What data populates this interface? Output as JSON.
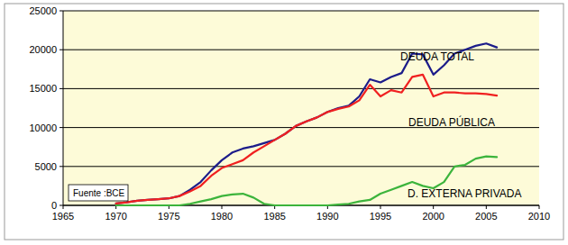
{
  "chart_data": {
    "type": "line",
    "source": "Fuente :BCE",
    "x": [
      1970,
      1971,
      1972,
      1973,
      1974,
      1975,
      1976,
      1977,
      1978,
      1979,
      1980,
      1981,
      1982,
      1983,
      1984,
      1985,
      1986,
      1987,
      1988,
      1989,
      1990,
      1991,
      1992,
      1993,
      1994,
      1995,
      1996,
      1997,
      1998,
      1999,
      2000,
      2001,
      2002,
      2003,
      2004,
      2005,
      2006
    ],
    "series": [
      {
        "name": "DEUDA TOTAL",
        "color": "#1c1c8a",
        "values": [
          250,
          400,
          600,
          700,
          800,
          900,
          1200,
          2000,
          3000,
          4500,
          5800,
          6800,
          7300,
          7600,
          8000,
          8400,
          9200,
          10200,
          10800,
          11300,
          12000,
          12500,
          12800,
          14000,
          16200,
          15800,
          16500,
          17000,
          19500,
          19400,
          16800,
          18000,
          19500,
          20000,
          20500,
          20800,
          20300
        ]
      },
      {
        "name": "DEUDA PÚBLICA",
        "color": "#f02020",
        "values": [
          250,
          400,
          600,
          700,
          800,
          900,
          1200,
          1800,
          2500,
          3800,
          4800,
          5300,
          5800,
          6800,
          7600,
          8400,
          9200,
          10200,
          10800,
          11300,
          12000,
          12400,
          12700,
          13500,
          15500,
          14000,
          14800,
          14500,
          16500,
          16800,
          14000,
          14500,
          14500,
          14400,
          14400,
          14300,
          14100
        ]
      },
      {
        "name": "D. EXTERNA PRIVADA",
        "color": "#3cb43c",
        "values": [
          0,
          0,
          0,
          0,
          0,
          0,
          0,
          200,
          500,
          800,
          1200,
          1400,
          1500,
          1000,
          200,
          0,
          0,
          0,
          0,
          0,
          0,
          100,
          200,
          500,
          700,
          1500,
          2000,
          2500,
          3000,
          2500,
          2200,
          3000,
          5000,
          5200,
          6000,
          6300,
          6200
        ]
      }
    ],
    "xlim": [
      1965,
      2010
    ],
    "xticks": [
      1965,
      1970,
      1975,
      1980,
      1985,
      1990,
      1995,
      2000,
      2005,
      2010
    ],
    "ylim": [
      0,
      25000
    ],
    "yticks": [
      0,
      5000,
      10000,
      15000,
      20000,
      25000
    ],
    "grid": true
  }
}
